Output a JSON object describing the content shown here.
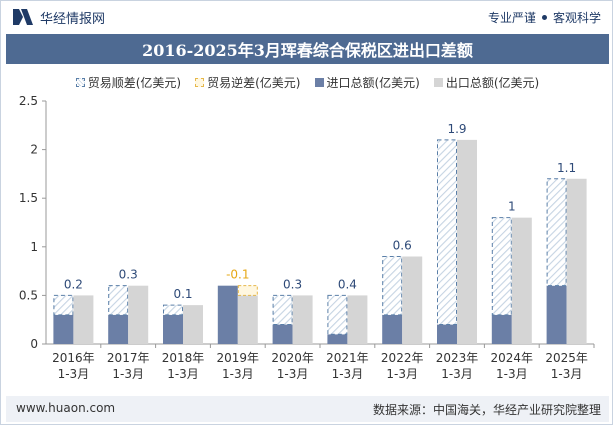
{
  "header": {
    "brand": "华经情报网",
    "tagline_left": "专业严谨",
    "tagline_right": "客观科学"
  },
  "chart_data": {
    "type": "bar",
    "title": "2016-2025年3月珲春综合保税区进出口差额",
    "categories": [
      [
        "2016年",
        "1-3月"
      ],
      [
        "2017年",
        "1-3月"
      ],
      [
        "2018年",
        "1-3月"
      ],
      [
        "2019年",
        "1-3月"
      ],
      [
        "2020年",
        "1-3月"
      ],
      [
        "2021年",
        "1-3月"
      ],
      [
        "2022年",
        "1-3月"
      ],
      [
        "2023年",
        "1-3月"
      ],
      [
        "2024年",
        "1-3月"
      ],
      [
        "2025年",
        "1-3月"
      ]
    ],
    "ylim": [
      0,
      2.5
    ],
    "yticks": [
      "0",
      "0.5",
      "1",
      "1.5",
      "2",
      "2.5"
    ],
    "series": [
      {
        "name": "贸易顺差(亿美元)",
        "values": [
          0.2,
          0.3,
          0.1,
          null,
          0.3,
          0.4,
          0.6,
          1.9,
          1,
          1.1
        ]
      },
      {
        "name": "贸易逆差(亿美元)",
        "values": [
          null,
          null,
          null,
          -0.1,
          null,
          null,
          null,
          null,
          null,
          null
        ]
      },
      {
        "name": "进口总额(亿美元)",
        "values": [
          0.3,
          0.3,
          0.3,
          0.6,
          0.2,
          0.1,
          0.3,
          0.2,
          0.3,
          0.6
        ]
      },
      {
        "name": "出口总额(亿美元)",
        "values": [
          0.5,
          0.6,
          0.4,
          0.5,
          0.5,
          0.5,
          0.9,
          2.1,
          1.3,
          1.7
        ]
      }
    ],
    "data_labels": [
      "0.2",
      "0.3",
      "0.1",
      "-0.1",
      "0.3",
      "0.4",
      "0.6",
      "1.9",
      "1",
      "1.1"
    ],
    "colors": {
      "surplus_border": "#5a7fa8",
      "surplus_hatch": "#c6d4e3",
      "deficit_border": "#e6b84a",
      "deficit_label": "#e6a817",
      "import": "#6b7fa6",
      "export": "#d5d5d5",
      "label": "#2e4a78"
    },
    "legend_position": "top",
    "grid": false
  },
  "footer": {
    "website": "www.huaon.com",
    "source": "数据来源：中国海关，华经产业研究院整理"
  }
}
